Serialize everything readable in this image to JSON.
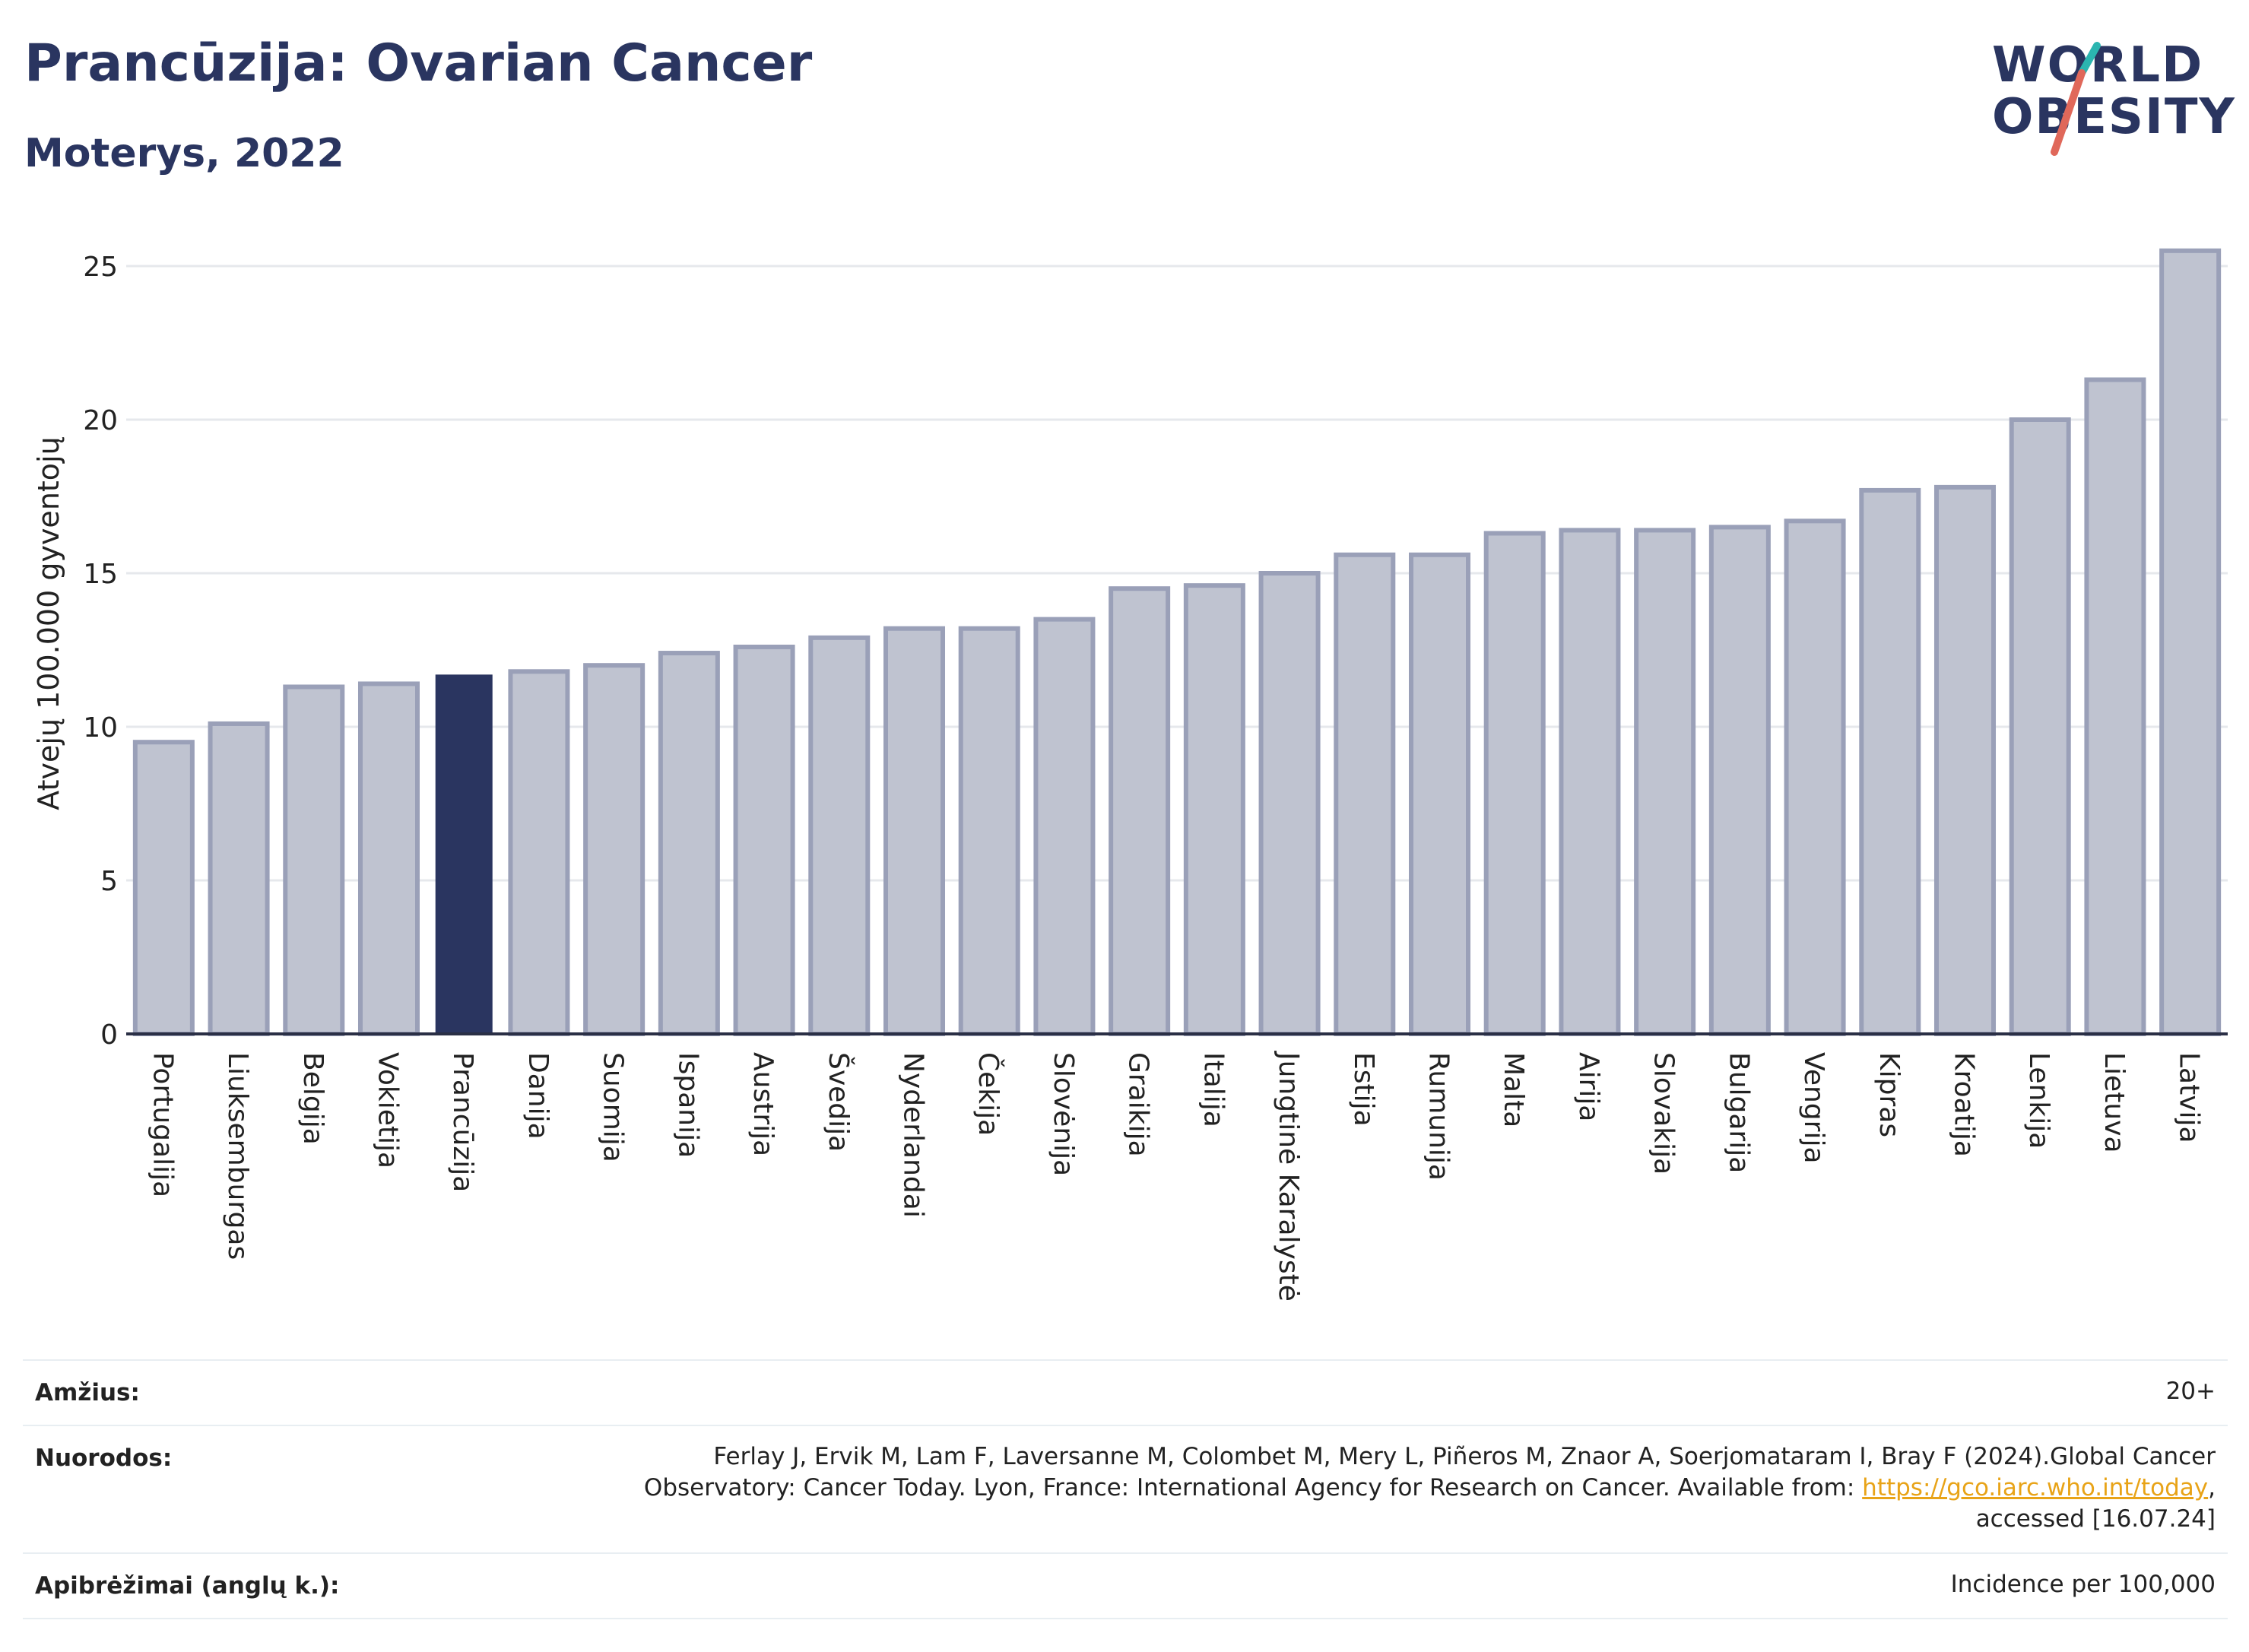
{
  "header": {
    "title": "Prancūzija: Ovarian Cancer",
    "subtitle": "Moterys, 2022"
  },
  "logo": {
    "line1": "WORLD",
    "line2": "OBESITY",
    "accent_teal": "#2bb5b0",
    "accent_coral": "#e0685a"
  },
  "chart_data": {
    "type": "bar",
    "ylabel": "Atvejų 100.000 gyventojų",
    "ylim": [
      0,
      26
    ],
    "yticks": [
      0,
      5,
      10,
      15,
      20,
      25
    ],
    "grid": true,
    "highlight": "Prancūzija",
    "colors": {
      "bar": "#bfc3d0",
      "bar_border": "#9aa0b8",
      "highlight": "#2a3560"
    },
    "categories": [
      "Portugalija",
      "Liuksemburgas",
      "Belgija",
      "Vokietija",
      "Prancūzija",
      "Danija",
      "Suomija",
      "Ispanija",
      "Austrija",
      "Švedija",
      "Nyderlandai",
      "Čekija",
      "Slovėnija",
      "Graikija",
      "Italija",
      "Jungtinė Karalystė",
      "Estija",
      "Rumunija",
      "Malta",
      "Airija",
      "Slovakija",
      "Bulgarija",
      "Vengrija",
      "Kipras",
      "Kroatija",
      "Lenkija",
      "Lietuva",
      "Latvija"
    ],
    "values": [
      9.5,
      10.1,
      11.3,
      11.4,
      11.7,
      11.8,
      12.0,
      12.4,
      12.6,
      12.9,
      13.2,
      13.2,
      13.5,
      14.5,
      14.6,
      15.0,
      15.6,
      15.6,
      16.3,
      16.4,
      16.4,
      16.5,
      16.7,
      17.7,
      17.8,
      20.0,
      21.3,
      25.5
    ]
  },
  "info": {
    "age_label": "Amžius:",
    "age_value": "20+",
    "refs_label": "Nuorodos:",
    "refs_line1": "Ferlay J, Ervik M, Lam F, Laversanne M, Colombet M, Mery L, Piñeros M, Znaor A, Soerjomataram I, Bray F (2024).Global Cancer",
    "refs_line2_pre": "Observatory: Cancer Today. Lyon, France: International Agency for Research on Cancer. Available from: ",
    "refs_link": "https://gco.iarc.who.int/today",
    "refs_line2_post": ",",
    "refs_line3": "accessed [16.07.24]",
    "def_label": "Apibrėžimai (anglų k.):",
    "def_value": "Incidence per 100,000"
  }
}
